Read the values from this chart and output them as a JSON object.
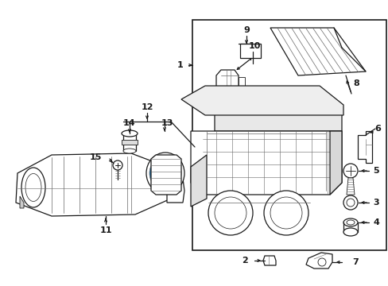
{
  "background_color": "#ffffff",
  "fig_width": 4.89,
  "fig_height": 3.6,
  "dpi": 100,
  "dark": "#1a1a1a",
  "gray": "#666666",
  "mid": "#999999",
  "light": "#f0f0f0"
}
